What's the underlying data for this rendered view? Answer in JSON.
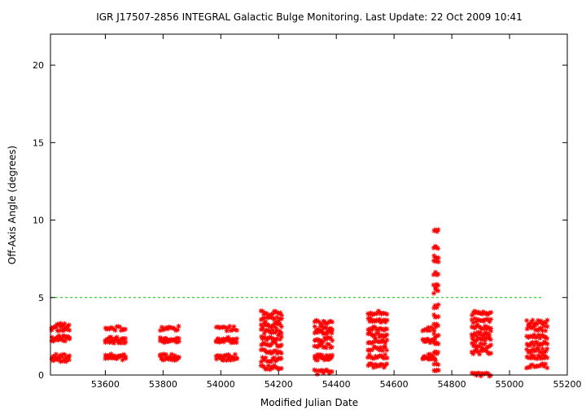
{
  "chart_data": {
    "type": "scatter",
    "title": "IGR J17507-2856   INTEGRAL Galactic Bulge Monitoring.  Last Update: 22 Oct 2009 10:41",
    "xlabel": "Modified Julian Date",
    "ylabel": "Off-Axis Angle (degrees)",
    "xlim": [
      53410,
      55200
    ],
    "ylim": [
      0,
      22
    ],
    "xticks": [
      "53600",
      "53800",
      "54000",
      "54200",
      "54400",
      "54600",
      "54800",
      "55000",
      "55200"
    ],
    "yticks": [
      "0",
      "5",
      "10",
      "15",
      "20"
    ],
    "threshold": 5,
    "grid": false,
    "colors": {
      "points": "#ff0000",
      "threshold": "#00cc00",
      "axes": "#000000"
    },
    "marker": "asterisk",
    "clusters": [
      {
        "x_range": [
          53415,
          53475
        ],
        "y_values": [
          1.0,
          1.2,
          2.3,
          2.4,
          3.0,
          3.2
        ]
      },
      {
        "x_range": [
          53600,
          53670
        ],
        "y_values": [
          1.1,
          1.2,
          2.2,
          2.3,
          3.0
        ]
      },
      {
        "x_range": [
          53790,
          53855
        ],
        "y_values": [
          1.1,
          1.2,
          2.2,
          2.3,
          3.0
        ]
      },
      {
        "x_range": [
          53985,
          54055
        ],
        "y_values": [
          1.1,
          1.2,
          2.2,
          2.3,
          3.0
        ]
      },
      {
        "x_range": [
          54140,
          54210
        ],
        "y_values": [
          0.5,
          1.0,
          1.5,
          2.0,
          2.4,
          2.8,
          3.2,
          3.6,
          4.0
        ]
      },
      {
        "x_range": [
          54325,
          54385
        ],
        "y_values": [
          0.2,
          1.1,
          1.2,
          1.9,
          2.3,
          2.8,
          3.0,
          3.4
        ]
      },
      {
        "x_range": [
          54510,
          54575
        ],
        "y_values": [
          0.6,
          1.2,
          1.7,
          2.2,
          2.6,
          3.0,
          3.5,
          4.0
        ]
      },
      {
        "x_range": [
          54700,
          54740
        ],
        "y_values": [
          1.1,
          1.2,
          2.2,
          2.3,
          3.0
        ]
      },
      {
        "x_range": [
          54738,
          54755
        ],
        "y_values": [
          0.3,
          0.8,
          1.4,
          2.0,
          2.6,
          3.2,
          3.8,
          4.4,
          5.4,
          5.8,
          6.6,
          7.3,
          7.7,
          8.2,
          9.4
        ]
      },
      {
        "x_range": [
          54870,
          54935
        ],
        "y_values": [
          0.0,
          1.5,
          1.9,
          2.3,
          2.7,
          3.1,
          3.5,
          4.0
        ]
      },
      {
        "x_range": [
          55060,
          55130
        ],
        "y_values": [
          0.6,
          1.2,
          1.6,
          2.0,
          2.5,
          3.0,
          3.4
        ]
      }
    ]
  }
}
